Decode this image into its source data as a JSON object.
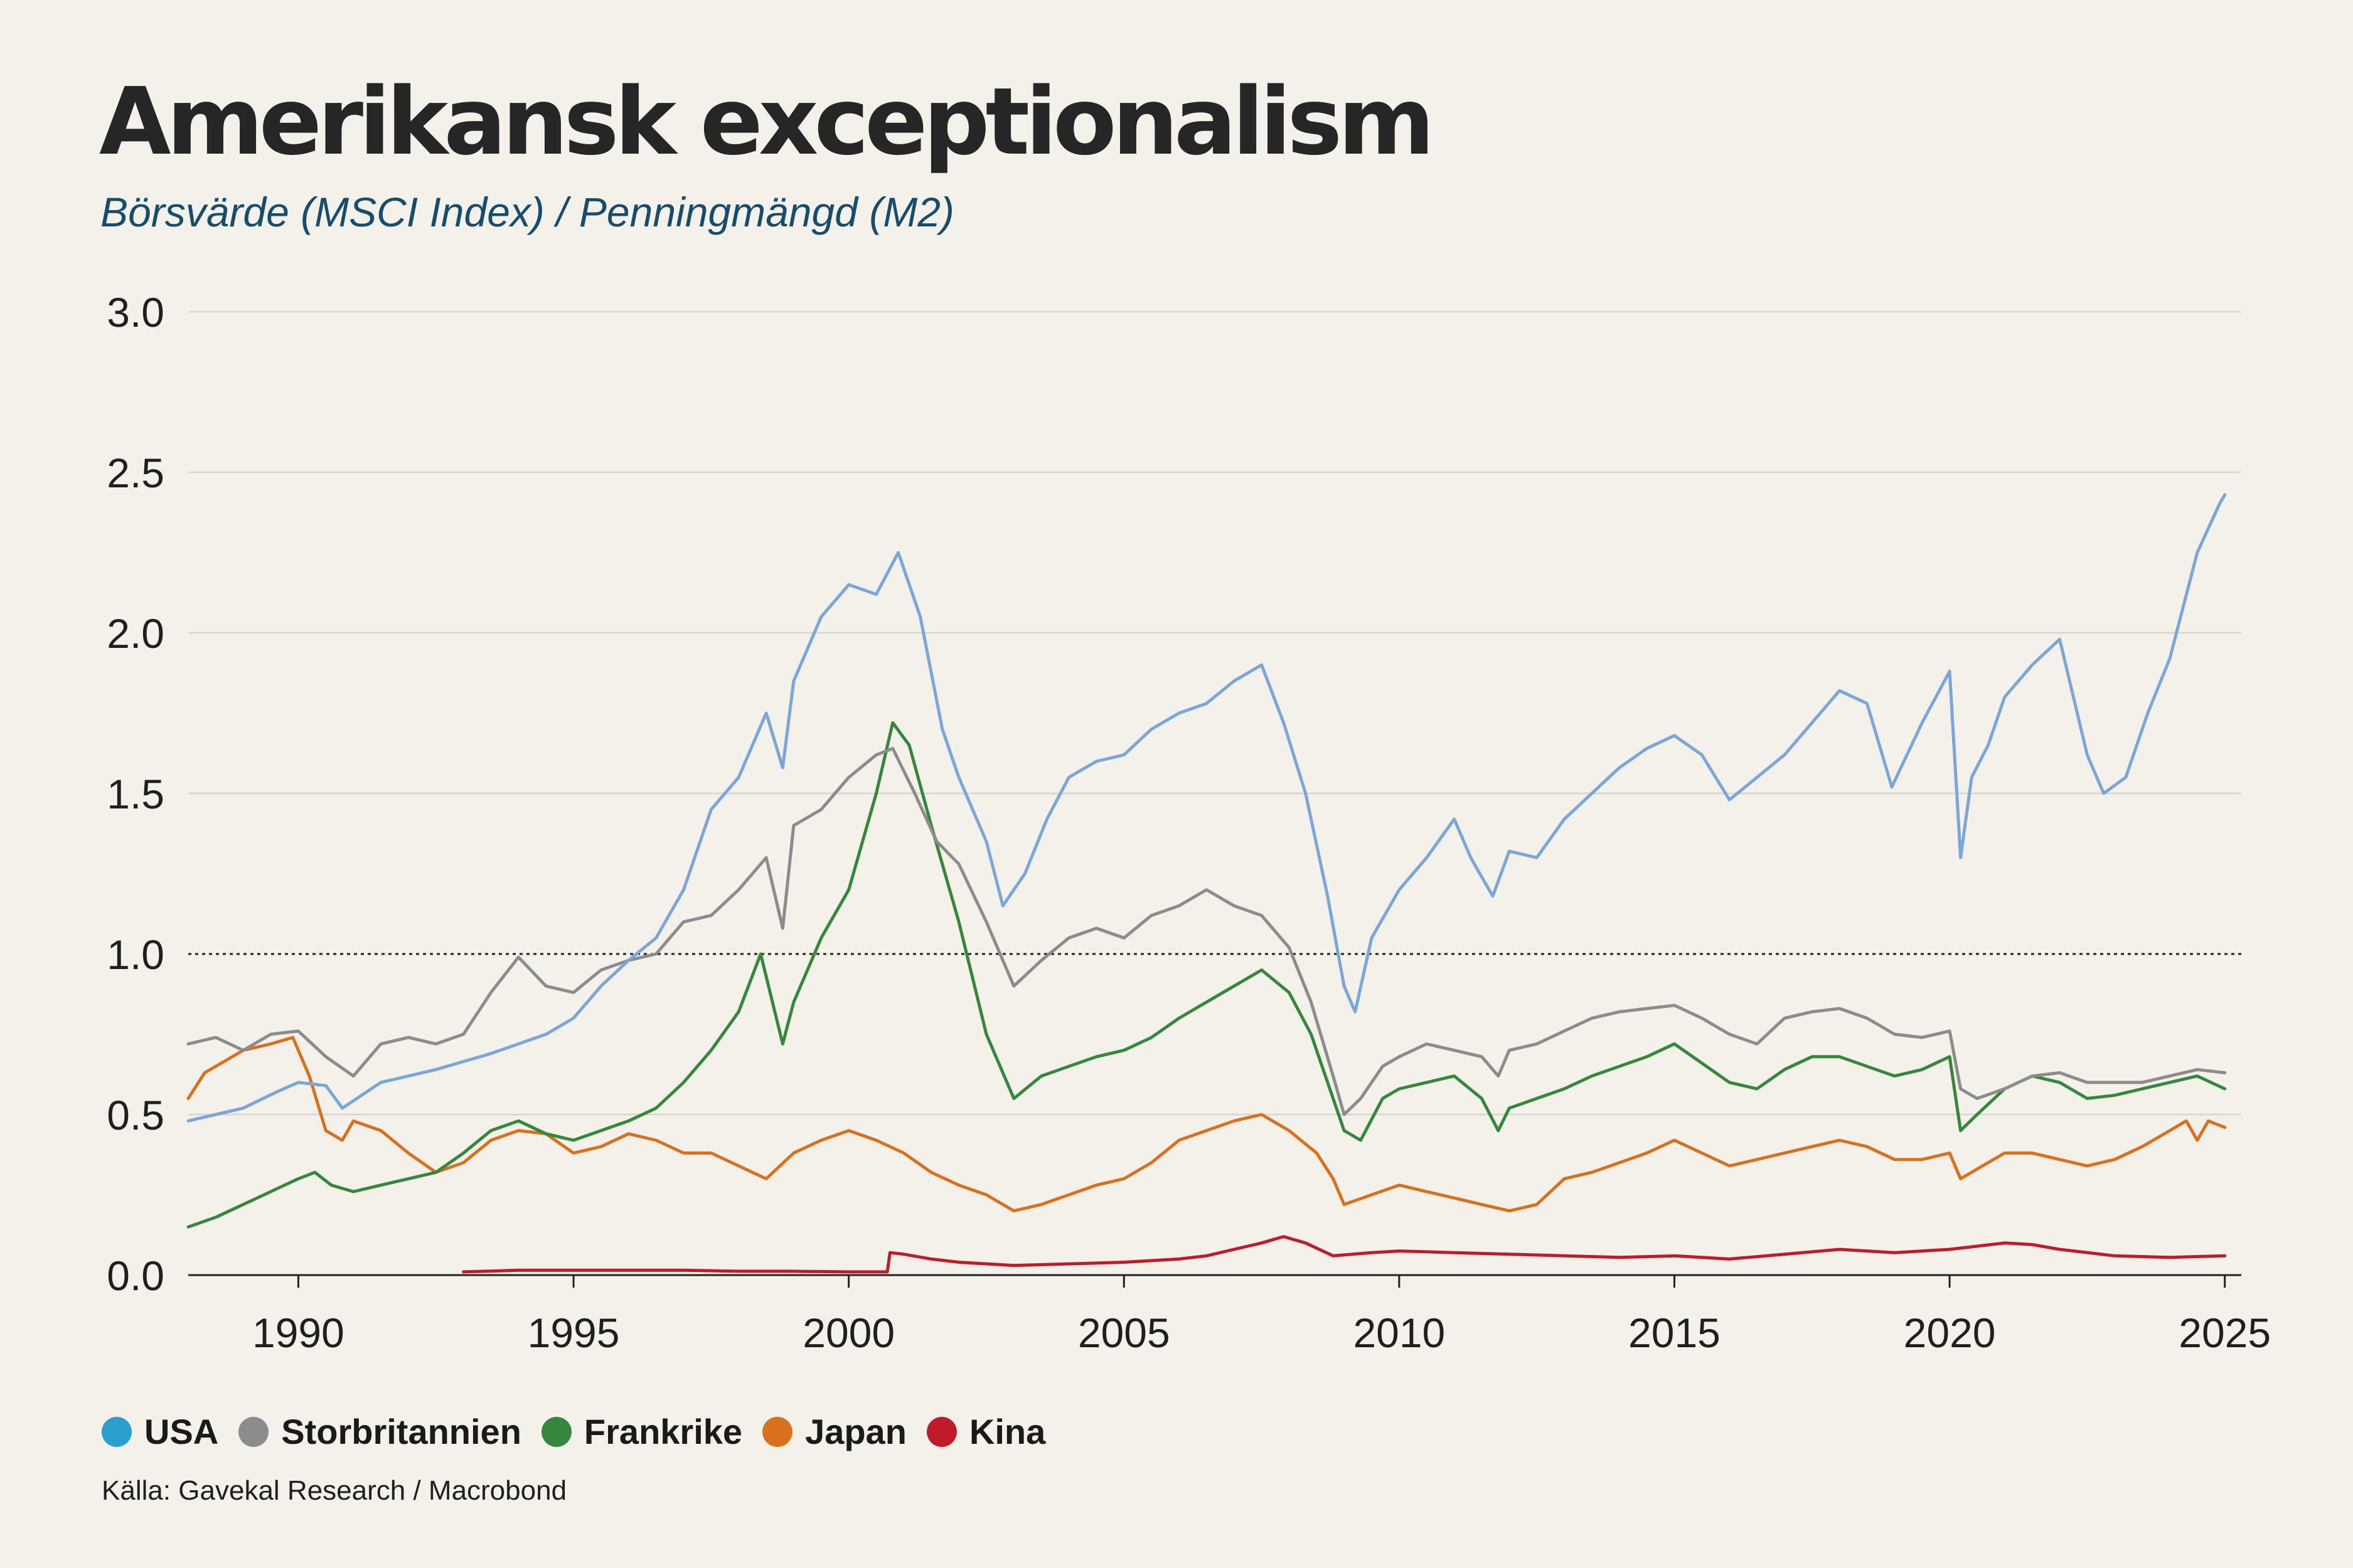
{
  "title": "Amerikansk exceptionalism",
  "subtitle": "Börsvärde (MSCI Index) / Penningmängd (M2)",
  "source": "Källa: Gavekal Research / Macrobond",
  "legend": [
    {
      "label": "USA",
      "color": "#2a9fce"
    },
    {
      "label": "Storbritannien",
      "color": "#8c8c8c"
    },
    {
      "label": "Frankrike",
      "color": "#34873d"
    },
    {
      "label": "Japan",
      "color": "#d9701d"
    },
    {
      "label": "Kina",
      "color": "#c01b2a"
    }
  ],
  "chart_data": {
    "type": "line",
    "title": "Amerikansk exceptionalism",
    "subtitle": "Börsvärde (MSCI Index) / Penningmängd (M2)",
    "xlabel": "",
    "ylabel": "",
    "xlim": [
      1988,
      2025.3
    ],
    "ylim": [
      0,
      3
    ],
    "x_ticks": [
      1990,
      1995,
      2000,
      2005,
      2010,
      2015,
      2020,
      2025
    ],
    "x_tick_labels": [
      "1990",
      "1995",
      "2000",
      "2005",
      "2010",
      "2015",
      "2020",
      "2025"
    ],
    "y_ticks": [
      0,
      0.5,
      1,
      1.5,
      2,
      2.5,
      3
    ],
    "y_tick_labels": [
      "0.0",
      "0.5",
      "1.0",
      "1.5",
      "2.0",
      "2.5",
      "3.0"
    ],
    "reference_line": 1.0,
    "grid": true,
    "legend_position": "bottom",
    "series": [
      {
        "name": "USA",
        "color": "#7aa6d8",
        "x": [
          1988.0,
          1989.0,
          1989.6,
          1990.0,
          1990.5,
          1990.8,
          1991.5,
          1992.5,
          1993.5,
          1994.5,
          1995.0,
          1995.5,
          1996.0,
          1996.5,
          1997.0,
          1997.5,
          1998.0,
          1998.5,
          1998.8,
          1999.0,
          1999.5,
          2000.0,
          2000.5,
          2000.9,
          2001.3,
          2001.7,
          2002.0,
          2002.5,
          2002.8,
          2003.2,
          2003.6,
          2004.0,
          2004.5,
          2005.0,
          2005.5,
          2006.0,
          2006.5,
          2007.0,
          2007.5,
          2007.9,
          2008.3,
          2008.7,
          2009.0,
          2009.2,
          2009.5,
          2010.0,
          2010.5,
          2011.0,
          2011.3,
          2011.7,
          2012.0,
          2012.5,
          2013.0,
          2013.5,
          2014.0,
          2014.5,
          2015.0,
          2015.5,
          2016.0,
          2016.5,
          2017.0,
          2017.5,
          2018.0,
          2018.5,
          2018.95,
          2019.5,
          2020.0,
          2020.2,
          2020.4,
          2020.7,
          2021.0,
          2021.5,
          2022.0,
          2022.5,
          2022.8,
          2023.2,
          2023.6,
          2024.0,
          2024.5,
          2024.9,
          2025.0
        ],
        "y": [
          0.48,
          0.52,
          0.57,
          0.6,
          0.59,
          0.52,
          0.6,
          0.64,
          0.69,
          0.75,
          0.8,
          0.9,
          0.98,
          1.05,
          1.2,
          1.45,
          1.55,
          1.75,
          1.58,
          1.85,
          2.05,
          2.15,
          2.12,
          2.25,
          2.05,
          1.7,
          1.55,
          1.35,
          1.15,
          1.25,
          1.42,
          1.55,
          1.6,
          1.62,
          1.7,
          1.75,
          1.78,
          1.85,
          1.9,
          1.72,
          1.5,
          1.18,
          0.9,
          0.82,
          1.05,
          1.2,
          1.3,
          1.42,
          1.3,
          1.18,
          1.32,
          1.3,
          1.42,
          1.5,
          1.58,
          1.64,
          1.68,
          1.62,
          1.48,
          1.55,
          1.62,
          1.72,
          1.82,
          1.78,
          1.52,
          1.72,
          1.88,
          1.3,
          1.55,
          1.65,
          1.8,
          1.9,
          1.98,
          1.62,
          1.5,
          1.55,
          1.75,
          1.92,
          2.25,
          2.4,
          2.43
        ]
      },
      {
        "name": "Storbritannien",
        "color": "#8c8c8c",
        "x": [
          1988.0,
          1988.5,
          1989.0,
          1989.5,
          1990.0,
          1990.5,
          1991.0,
          1991.5,
          1992.0,
          1992.5,
          1993.0,
          1993.5,
          1994.0,
          1994.5,
          1995.0,
          1995.5,
          1996.0,
          1996.5,
          1997.0,
          1997.5,
          1998.0,
          1998.5,
          1998.8,
          1999.0,
          1999.5,
          2000.0,
          2000.5,
          2000.8,
          2001.2,
          2001.6,
          2002.0,
          2002.5,
          2003.0,
          2003.5,
          2004.0,
          2004.5,
          2005.0,
          2005.5,
          2006.0,
          2006.5,
          2007.0,
          2007.5,
          2008.0,
          2008.4,
          2008.8,
          2009.0,
          2009.3,
          2009.7,
          2010.0,
          2010.5,
          2011.0,
          2011.5,
          2011.8,
          2012.0,
          2012.5,
          2013.0,
          2013.5,
          2014.0,
          2014.5,
          2015.0,
          2015.5,
          2016.0,
          2016.5,
          2017.0,
          2017.5,
          2018.0,
          2018.5,
          2019.0,
          2019.5,
          2020.0,
          2020.2,
          2020.5,
          2021.0,
          2021.5,
          2022.0,
          2022.5,
          2023.0,
          2023.5,
          2024.0,
          2024.5,
          2025.0
        ],
        "y": [
          0.72,
          0.74,
          0.7,
          0.75,
          0.76,
          0.68,
          0.62,
          0.72,
          0.74,
          0.72,
          0.75,
          0.88,
          0.99,
          0.9,
          0.88,
          0.95,
          0.98,
          1.0,
          1.1,
          1.12,
          1.2,
          1.3,
          1.08,
          1.4,
          1.45,
          1.55,
          1.62,
          1.64,
          1.5,
          1.35,
          1.28,
          1.1,
          0.9,
          0.98,
          1.05,
          1.08,
          1.05,
          1.12,
          1.15,
          1.2,
          1.15,
          1.12,
          1.02,
          0.85,
          0.62,
          0.5,
          0.55,
          0.65,
          0.68,
          0.72,
          0.7,
          0.68,
          0.62,
          0.7,
          0.72,
          0.76,
          0.8,
          0.82,
          0.83,
          0.84,
          0.8,
          0.75,
          0.72,
          0.8,
          0.82,
          0.83,
          0.8,
          0.75,
          0.74,
          0.76,
          0.58,
          0.55,
          0.58,
          0.62,
          0.63,
          0.6,
          0.6,
          0.6,
          0.62,
          0.64,
          0.63
        ]
      },
      {
        "name": "Frankrike",
        "color": "#34873d",
        "x": [
          1988.0,
          1988.5,
          1989.0,
          1989.5,
          1990.0,
          1990.3,
          1990.6,
          1991.0,
          1991.5,
          1992.0,
          1992.5,
          1993.0,
          1993.5,
          1994.0,
          1994.5,
          1995.0,
          1995.5,
          1996.0,
          1996.5,
          1997.0,
          1997.5,
          1998.0,
          1998.4,
          1998.8,
          1999.0,
          1999.5,
          2000.0,
          2000.5,
          2000.8,
          2001.1,
          2001.5,
          2002.0,
          2002.5,
          2003.0,
          2003.5,
          2004.0,
          2004.5,
          2005.0,
          2005.5,
          2006.0,
          2006.5,
          2007.0,
          2007.5,
          2008.0,
          2008.4,
          2008.8,
          2009.0,
          2009.3,
          2009.7,
          2010.0,
          2010.5,
          2011.0,
          2011.5,
          2011.8,
          2012.0,
          2012.5,
          2013.0,
          2013.5,
          2014.0,
          2014.5,
          2015.0,
          2015.5,
          2016.0,
          2016.5,
          2017.0,
          2017.5,
          2018.0,
          2018.5,
          2019.0,
          2019.5,
          2020.0,
          2020.2,
          2020.5,
          2021.0,
          2021.5,
          2022.0,
          2022.5,
          2023.0,
          2023.5,
          2024.0,
          2024.5,
          2025.0
        ],
        "y": [
          0.15,
          0.18,
          0.22,
          0.26,
          0.3,
          0.32,
          0.28,
          0.26,
          0.28,
          0.3,
          0.32,
          0.38,
          0.45,
          0.48,
          0.44,
          0.42,
          0.45,
          0.48,
          0.52,
          0.6,
          0.7,
          0.82,
          1.0,
          0.72,
          0.85,
          1.05,
          1.2,
          1.5,
          1.72,
          1.65,
          1.4,
          1.1,
          0.75,
          0.55,
          0.62,
          0.65,
          0.68,
          0.7,
          0.74,
          0.8,
          0.85,
          0.9,
          0.95,
          0.88,
          0.75,
          0.55,
          0.45,
          0.42,
          0.55,
          0.58,
          0.6,
          0.62,
          0.55,
          0.45,
          0.52,
          0.55,
          0.58,
          0.62,
          0.65,
          0.68,
          0.72,
          0.66,
          0.6,
          0.58,
          0.64,
          0.68,
          0.68,
          0.65,
          0.62,
          0.64,
          0.68,
          0.45,
          0.5,
          0.58,
          0.62,
          0.6,
          0.55,
          0.56,
          0.58,
          0.6,
          0.62,
          0.58
        ]
      },
      {
        "name": "Japan",
        "color": "#d9701d",
        "x": [
          1988.0,
          1988.3,
          1988.7,
          1989.0,
          1989.5,
          1989.9,
          1990.2,
          1990.5,
          1990.8,
          1991.0,
          1991.5,
          1992.0,
          1992.5,
          1993.0,
          1993.5,
          1994.0,
          1994.5,
          1995.0,
          1995.5,
          1996.0,
          1996.5,
          1997.0,
          1997.5,
          1998.0,
          1998.5,
          1999.0,
          1999.5,
          2000.0,
          2000.5,
          2001.0,
          2001.5,
          2002.0,
          2002.5,
          2003.0,
          2003.5,
          2004.0,
          2004.5,
          2005.0,
          2005.5,
          2006.0,
          2006.5,
          2007.0,
          2007.5,
          2008.0,
          2008.5,
          2008.8,
          2009.0,
          2009.5,
          2010.0,
          2010.5,
          2011.0,
          2011.5,
          2012.0,
          2012.5,
          2013.0,
          2013.5,
          2014.0,
          2014.5,
          2015.0,
          2015.5,
          2016.0,
          2016.5,
          2017.0,
          2017.5,
          2018.0,
          2018.5,
          2019.0,
          2019.5,
          2020.0,
          2020.2,
          2020.5,
          2021.0,
          2021.5,
          2022.0,
          2022.5,
          2023.0,
          2023.5,
          2024.0,
          2024.3,
          2024.5,
          2024.7,
          2025.0
        ],
        "y": [
          0.55,
          0.63,
          0.67,
          0.7,
          0.72,
          0.74,
          0.62,
          0.45,
          0.42,
          0.48,
          0.45,
          0.38,
          0.32,
          0.35,
          0.42,
          0.45,
          0.44,
          0.38,
          0.4,
          0.44,
          0.42,
          0.38,
          0.38,
          0.34,
          0.3,
          0.38,
          0.42,
          0.45,
          0.42,
          0.38,
          0.32,
          0.28,
          0.25,
          0.2,
          0.22,
          0.25,
          0.28,
          0.3,
          0.35,
          0.42,
          0.45,
          0.48,
          0.5,
          0.45,
          0.38,
          0.3,
          0.22,
          0.25,
          0.28,
          0.26,
          0.24,
          0.22,
          0.2,
          0.22,
          0.3,
          0.32,
          0.35,
          0.38,
          0.42,
          0.38,
          0.34,
          0.36,
          0.38,
          0.4,
          0.42,
          0.4,
          0.36,
          0.36,
          0.38,
          0.3,
          0.33,
          0.38,
          0.38,
          0.36,
          0.34,
          0.36,
          0.4,
          0.45,
          0.48,
          0.42,
          0.48,
          0.46
        ]
      },
      {
        "name": "Kina",
        "color": "#c01b2a",
        "x": [
          1993.0,
          1994.0,
          1995.0,
          1996.0,
          1997.0,
          1998.0,
          1999.0,
          2000.0,
          2000.7,
          2000.75,
          2001.0,
          2001.5,
          2002.0,
          2003.0,
          2004.0,
          2005.0,
          2006.0,
          2006.5,
          2007.0,
          2007.5,
          2007.9,
          2008.3,
          2008.8,
          2009.5,
          2010.0,
          2011.0,
          2012.0,
          2013.0,
          2014.0,
          2015.0,
          2016.0,
          2017.0,
          2018.0,
          2019.0,
          2020.0,
          2021.0,
          2021.5,
          2022.0,
          2023.0,
          2024.0,
          2025.0
        ],
        "y": [
          0.01,
          0.015,
          0.015,
          0.015,
          0.015,
          0.012,
          0.012,
          0.01,
          0.01,
          0.07,
          0.065,
          0.05,
          0.04,
          0.03,
          0.035,
          0.04,
          0.05,
          0.06,
          0.08,
          0.1,
          0.12,
          0.1,
          0.06,
          0.07,
          0.075,
          0.07,
          0.065,
          0.06,
          0.055,
          0.06,
          0.05,
          0.065,
          0.08,
          0.07,
          0.08,
          0.1,
          0.095,
          0.08,
          0.06,
          0.055,
          0.06
        ]
      }
    ]
  }
}
